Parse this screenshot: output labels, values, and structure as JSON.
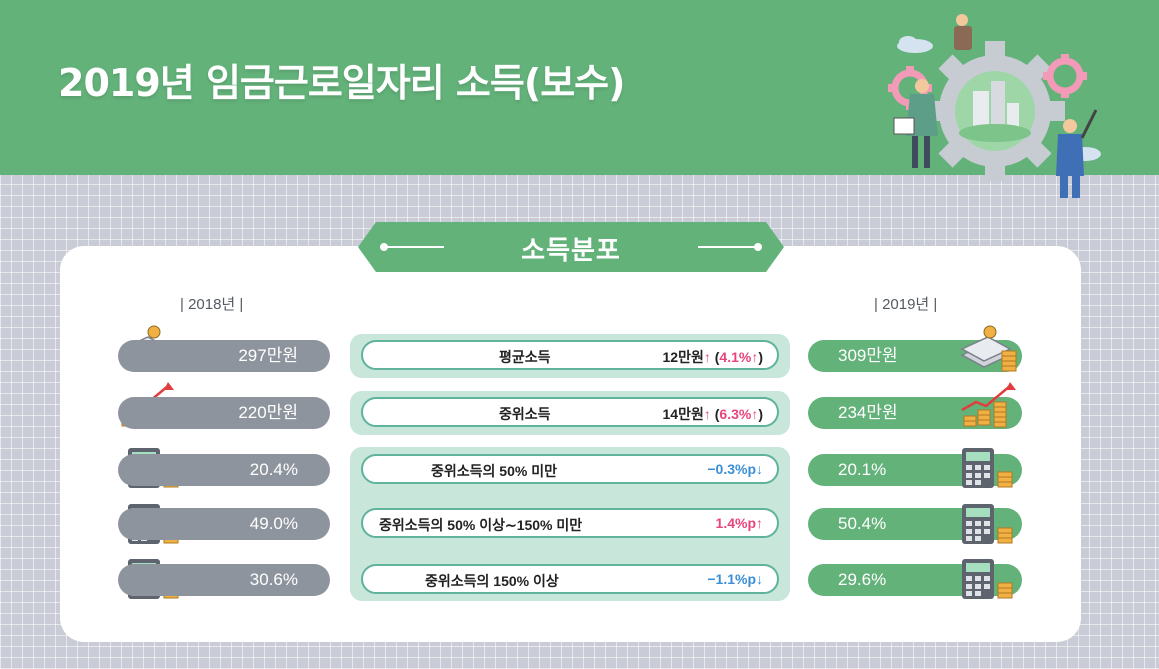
{
  "header": {
    "title": "2019년 임금근로일자리 소득(보수)"
  },
  "section": {
    "title": "소득분포"
  },
  "years": {
    "left": "| 2018년 |",
    "right": "| 2019년 |"
  },
  "rows": [
    {
      "icon": "money-stack-icon",
      "left_value": "297만원",
      "label": "평균소득",
      "change_amount": "12만원",
      "change_up_arrow": "↑",
      "change_pct": "4.1%",
      "right_value": "309만원"
    },
    {
      "icon": "rising-chart-coins-icon",
      "left_value": "220만원",
      "label": "중위소득",
      "change_amount": "14만원",
      "change_up_arrow": "↑",
      "change_pct": "6.3%",
      "right_value": "234만원"
    },
    {
      "icon": "calculator-coins-icon",
      "left_value": "20.4%",
      "label": "중위소득의 50% 미만",
      "change": "−0.3%p",
      "direction": "down",
      "arrow": "↓",
      "right_value": "20.1%"
    },
    {
      "icon": "calculator-coins-icon",
      "left_value": "49.0%",
      "label": "중위소득의 50% 이상∼150% 미만",
      "change": "1.4%p",
      "direction": "up",
      "arrow": "↑",
      "right_value": "50.4%"
    },
    {
      "icon": "calculator-coins-icon",
      "left_value": "30.6%",
      "label": "중위소득의 150% 이상",
      "change": "−1.1%p",
      "direction": "down",
      "arrow": "↓",
      "right_value": "29.6%"
    }
  ],
  "colors": {
    "header_green": "#63b27a",
    "pill_gray": "#8e949e",
    "pill_green": "#63b27a",
    "up_pink": "#e8457e",
    "down_blue": "#3b8fd6",
    "teal_border": "#5fb39a"
  }
}
